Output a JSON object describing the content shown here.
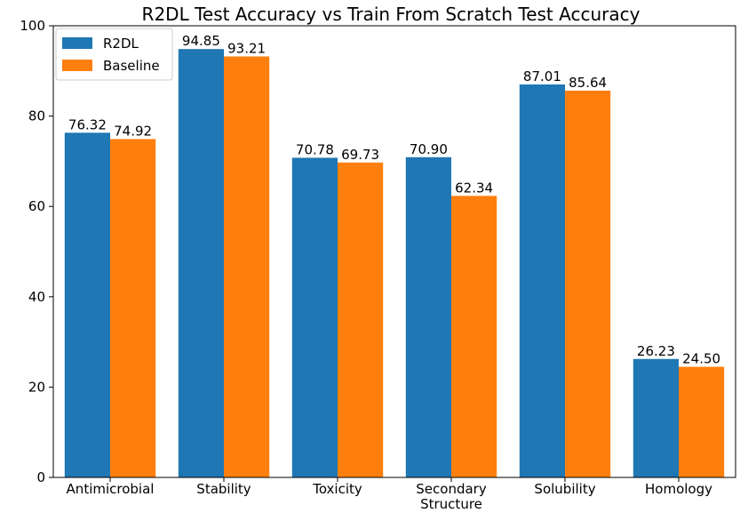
{
  "chart_data": {
    "type": "bar",
    "title": "R2DL Test Accuracy vs Train From Scratch Test Accuracy",
    "xlabel": "",
    "ylabel": "",
    "categories": [
      [
        "Antimicrobial"
      ],
      [
        "Stability"
      ],
      [
        "Toxicity"
      ],
      [
        "Secondary",
        "Structure"
      ],
      [
        "Solubility"
      ],
      [
        "Homology"
      ]
    ],
    "series": [
      {
        "name": "R2DL",
        "color": "#1f77b4",
        "values": [
          76.32,
          94.85,
          70.78,
          70.9,
          87.01,
          26.23
        ],
        "labels": [
          "76.32",
          "94.85",
          "70.78",
          "70.90",
          "87.01",
          "26.23"
        ]
      },
      {
        "name": "Baseline",
        "color": "#ff7f0e",
        "values": [
          74.92,
          93.21,
          69.73,
          62.34,
          85.64,
          24.5
        ],
        "labels": [
          "74.92",
          "93.21",
          "69.73",
          "62.34",
          "85.64",
          "24.50"
        ]
      }
    ],
    "ylim": [
      0,
      100
    ],
    "yticks": [
      0,
      20,
      40,
      60,
      80,
      100
    ],
    "ytick_labels": [
      "0",
      "20",
      "40",
      "60",
      "80",
      "100"
    ],
    "grid": false,
    "legend_position": "upper-left"
  }
}
